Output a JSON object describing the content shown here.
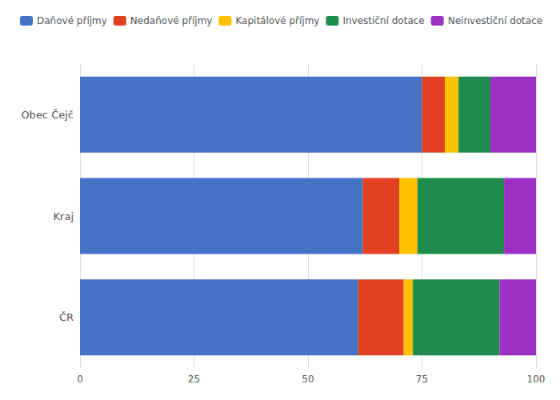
{
  "chart_data": {
    "type": "bar",
    "orientation": "horizontal",
    "stacked": true,
    "categories": [
      "Obec Čejč",
      "Kraj",
      "ČR"
    ],
    "series": [
      {
        "name": "Daňové příjmy",
        "color": "#4472C4",
        "values": [
          75,
          62,
          61
        ]
      },
      {
        "name": "Nedaňové příjmy",
        "color": "#E04020",
        "values": [
          5,
          8,
          10
        ]
      },
      {
        "name": "Kapitálové příjmy",
        "color": "#FFC000",
        "values": [
          3,
          4,
          2
        ]
      },
      {
        "name": "Investiční dotace",
        "color": "#1F8B4C",
        "values": [
          7,
          19,
          19
        ]
      },
      {
        "name": "Neinvestiční dotace",
        "color": "#9B30C3",
        "values": [
          10,
          7,
          8
        ]
      }
    ],
    "xlim": [
      0,
      100
    ],
    "xticks": [
      0,
      25,
      50,
      75,
      100
    ],
    "grid": true,
    "legend": "upper left"
  }
}
